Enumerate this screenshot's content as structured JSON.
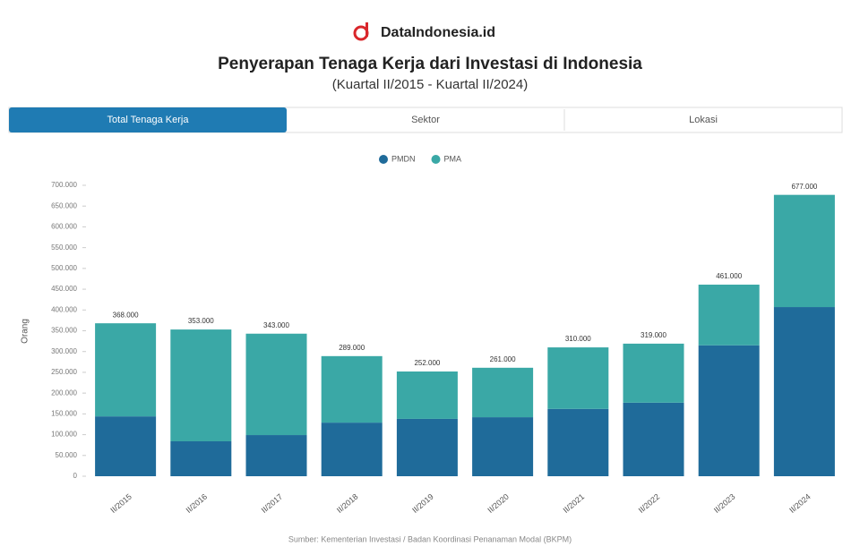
{
  "brand": "DataIndonesia.id",
  "tabs": [
    "Total Tenaga Kerja",
    "Sektor",
    "Lokasi"
  ],
  "chart_data": {
    "type": "stacked_bar",
    "title": "Penyerapan Tenaga Kerja dari Investasi di Indonesia",
    "subtitle": "(Kuartal II/2015 - Kuartal II/2024)",
    "y_label": "Orang",
    "source": "Sumber: Kementerian Investasi / Badan Koordinasi Penanaman Modal (BKPM)",
    "categories": [
      "II/2015",
      "II/2016",
      "II/2017",
      "II/2018",
      "II/2019",
      "II/2020",
      "II/2021",
      "II/2022",
      "II/2023",
      "II/2024"
    ],
    "series": [
      {
        "name": "PMDN",
        "color": "#1f6b9a",
        "values": [
          144000,
          84000,
          99000,
          129000,
          138000,
          142000,
          162000,
          177000,
          315000,
          407000
        ]
      },
      {
        "name": "PMA",
        "color": "#3aa8a6",
        "values": [
          224000,
          269000,
          244000,
          160000,
          114000,
          119000,
          148000,
          142000,
          146000,
          270000
        ]
      }
    ],
    "totals": {
      "values": [
        368000,
        353000,
        343000,
        289000,
        252000,
        261000,
        310000,
        319000,
        461000,
        677000
      ],
      "value_labels": [
        "368.000",
        "353.000",
        "343.000",
        "289.000",
        "252.000",
        "261.000",
        "310.000",
        "319.000",
        "461.000",
        "677.000"
      ]
    },
    "ylim": [
      0,
      700000
    ],
    "yticks": [
      0,
      {
        "value": 50000,
        "label": "50.000"
      },
      {
        "value": 100000,
        "label": "100.000"
      },
      {
        "value": 150000,
        "label": "150.000"
      },
      {
        "value": 200000,
        "label": "200.000"
      },
      {
        "value": 250000,
        "label": "250.000"
      },
      {
        "value": 300000,
        "label": "300.000"
      },
      {
        "value": 350000,
        "label": "350.000"
      },
      {
        "value": 400000,
        "label": "400.000"
      },
      {
        "value": 450000,
        "label": "450.000"
      },
      {
        "value": 500000,
        "label": "500.000"
      },
      {
        "value": 550000,
        "label": "550.000"
      },
      {
        "value": 600000,
        "label": "600.000"
      },
      {
        "value": 650000,
        "label": "650.000"
      },
      {
        "value": 700000,
        "label": "700.000"
      }
    ],
    "grid": false,
    "legend": "top"
  }
}
